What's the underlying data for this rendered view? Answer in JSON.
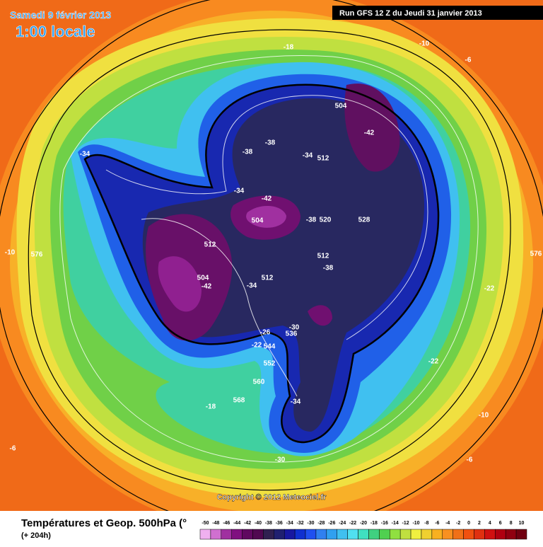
{
  "header": {
    "date": "Samedi 9 février 2013",
    "time": "1:00 locale",
    "run": "Run GFS 12 Z du Jeudi 31 janvier 2013"
  },
  "map": {
    "contour_labels": [
      "-18",
      "-10",
      "-6",
      "504",
      "-42",
      "-38",
      "-38",
      "-34",
      "512",
      "-34",
      "-34",
      "-42",
      "504",
      "-38",
      "520",
      "528",
      "512",
      "512",
      "-38",
      "-10",
      "576",
      "576",
      "504",
      "-42",
      "-34",
      "512",
      "-22",
      "-30",
      "536",
      "-26",
      "-22",
      "544",
      "552",
      "-22",
      "560",
      "568",
      "-18",
      "-34",
      "-10",
      "-6",
      "-30",
      "-6"
    ],
    "copyright": "Copyright © 2012 Meteociel.fr"
  },
  "footer": {
    "title": "Températures et Geop. 500hPa (°",
    "lead": "(+ 204h)"
  },
  "legend": {
    "items": [
      {
        "label": "-50",
        "color": "#f0b0f0"
      },
      {
        "label": "-48",
        "color": "#d070d0"
      },
      {
        "label": "-46",
        "color": "#a030a0"
      },
      {
        "label": "-44",
        "color": "#801080"
      },
      {
        "label": "-42",
        "color": "#600860"
      },
      {
        "label": "-40",
        "color": "#500850"
      },
      {
        "label": "-38",
        "color": "#302050"
      },
      {
        "label": "-36",
        "color": "#202070"
      },
      {
        "label": "-34",
        "color": "#1818a0"
      },
      {
        "label": "-32",
        "color": "#1030d0"
      },
      {
        "label": "-30",
        "color": "#2050f0"
      },
      {
        "label": "-28",
        "color": "#3080f0"
      },
      {
        "label": "-26",
        "color": "#30a0f0"
      },
      {
        "label": "-24",
        "color": "#40c0f0"
      },
      {
        "label": "-22",
        "color": "#50e0f0"
      },
      {
        "label": "-20",
        "color": "#40e0c0"
      },
      {
        "label": "-18",
        "color": "#40d080"
      },
      {
        "label": "-16",
        "color": "#50d050"
      },
      {
        "label": "-14",
        "color": "#90e040"
      },
      {
        "label": "-12",
        "color": "#c0e040"
      },
      {
        "label": "-10",
        "color": "#f0f040"
      },
      {
        "label": "-8",
        "color": "#f0d030"
      },
      {
        "label": "-6",
        "color": "#f8b020"
      },
      {
        "label": "-4",
        "color": "#f89020"
      },
      {
        "label": "-2",
        "color": "#f07018"
      },
      {
        "label": "0",
        "color": "#f05010"
      },
      {
        "label": "2",
        "color": "#e03010"
      },
      {
        "label": "4",
        "color": "#d01010"
      },
      {
        "label": "6",
        "color": "#b00010"
      },
      {
        "label": "8",
        "color": "#900010"
      },
      {
        "label": "10",
        "color": "#700010"
      }
    ]
  }
}
